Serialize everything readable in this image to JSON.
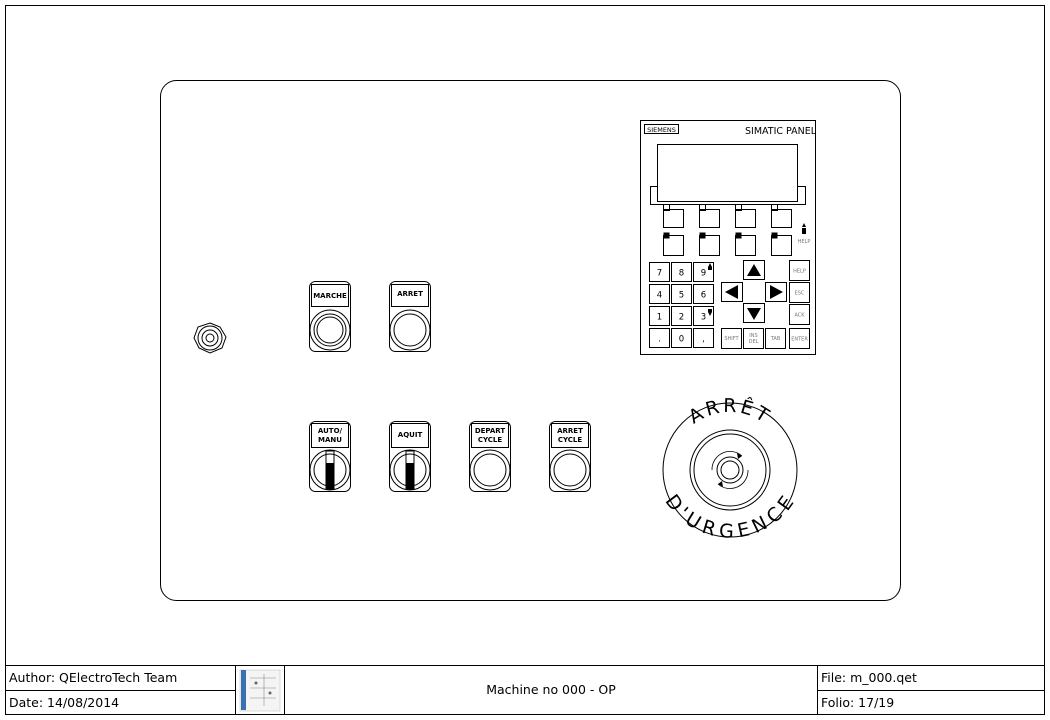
{
  "title_block": {
    "author": "Author: QElectroTech Team",
    "date": "Date: 14/08/2014",
    "title": "Machine no 000 - OP",
    "file": "File: m_000.qet",
    "folio": "Folio: 17/19"
  },
  "hmi": {
    "brand": "SIEMENS",
    "model": "SIMATIC PANEL",
    "numpad": [
      "7",
      "8",
      "9",
      "4",
      "5",
      "6",
      "1",
      "2",
      "3",
      ".",
      "0",
      ","
    ],
    "fn_keys": [
      "HELP",
      "ESC",
      "ACK",
      "ENTER"
    ],
    "bottom_keys": [
      "SHIFT",
      "INS DEL",
      "TAB"
    ],
    "help_indicator": "HELP"
  },
  "buttons": {
    "marche": "MARCHE",
    "arret": "ARRET",
    "auto_manu_l1": "AUTO/",
    "auto_manu_l2": "MANU",
    "aquit": "AQUIT",
    "depart_l1": "DEPART",
    "depart_l2": "CYCLE",
    "arret_cycle_l1": "ARRET",
    "arret_cycle_l2": "CYCLE"
  },
  "estop": {
    "top_text": "ARRÊT",
    "bottom_text": "D'URGENCE"
  }
}
